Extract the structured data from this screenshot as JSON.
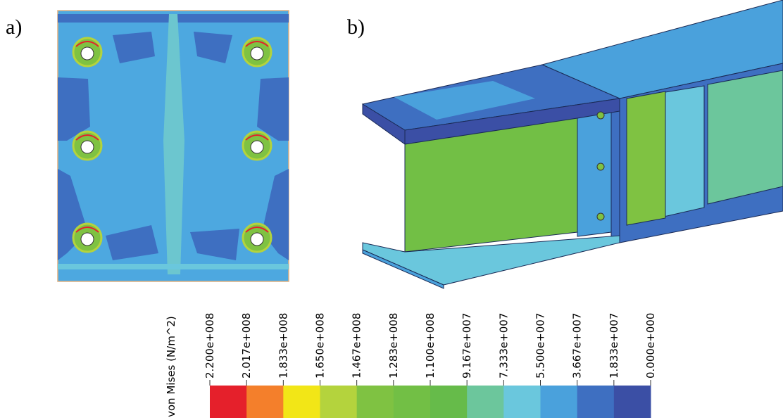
{
  "panels": [
    {
      "label": "a)"
    },
    {
      "label": "b)"
    }
  ],
  "legend": {
    "title": "von Mises (N/m^2)",
    "ticks": [
      "2.200e+008",
      "2.017e+008",
      "1.833e+008",
      "1.650e+008",
      "1.467e+008",
      "1.283e+008",
      "1.100e+008",
      "9.167e+007",
      "7.333e+007",
      "5.500e+007",
      "3.667e+007",
      "1.833e+007",
      "0.000e+000"
    ],
    "colors": [
      "#e5202b",
      "#f47f2b",
      "#f2e617",
      "#b4d33d",
      "#7fc242",
      "#72bf45",
      "#66bb4a",
      "#6cc69c",
      "#6ac7dd",
      "#4aa1dc",
      "#3e6fc1",
      "#3b4fa5"
    ]
  }
}
